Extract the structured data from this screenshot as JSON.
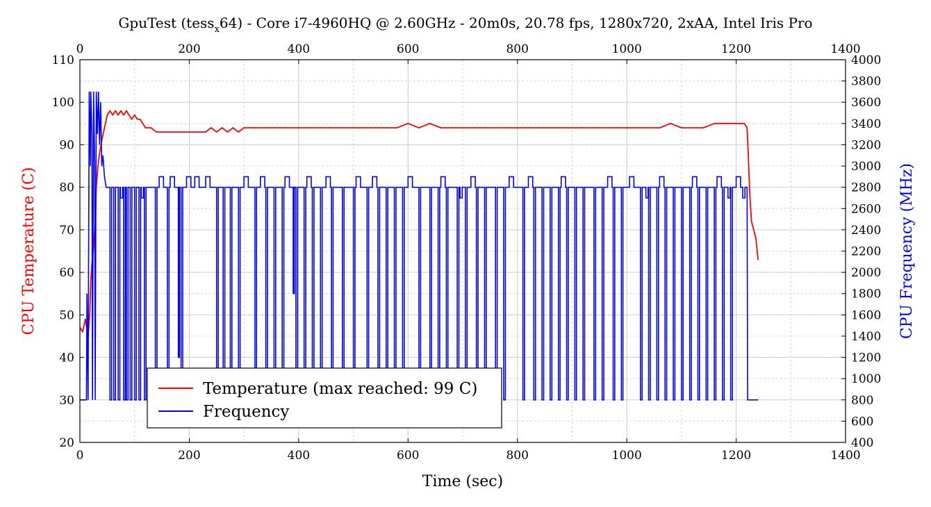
{
  "chart_data": {
    "type": "line",
    "title": "GpuTest (tess_x64) - Core i7-4960HQ @ 2.60GHz - 20m0s, 20.78 fps, 1280x720, 2xAA, Intel Iris Pro",
    "title_parts": {
      "before": "GpuTest (tess",
      "subscript": "x",
      "after": "64) - Core i7-4960HQ @ 2.60GHz - 20m0s, 20.78 fps, 1280x720, 2xAA, Intel Iris Pro"
    },
    "xlabel": "Time (sec)",
    "ylabel_left": "CPU Temperature (C)",
    "ylabel_right": "CPU Frequency (MHz)",
    "xlim": [
      0,
      1400
    ],
    "ylim_left": [
      20,
      110
    ],
    "ylim_right": [
      400,
      4000
    ],
    "x_ticks": [
      0,
      200,
      400,
      600,
      800,
      1000,
      1200,
      1400
    ],
    "y_left_ticks": [
      20,
      30,
      40,
      50,
      60,
      70,
      80,
      90,
      100,
      110
    ],
    "y_right_ticks": [
      400,
      600,
      800,
      1000,
      1200,
      1400,
      1600,
      1800,
      2000,
      2200,
      2400,
      2600,
      2800,
      3000,
      3200,
      3400,
      3600,
      3800,
      4000
    ],
    "grid": true,
    "legend_position": "bottom-left",
    "colors": {
      "temperature": "#ff0000",
      "frequency": "#0000ff"
    },
    "series": [
      {
        "name": "Temperature (max reached: 99 C)",
        "axis": "left",
        "color": "#ff0000",
        "x": [
          0,
          5,
          10,
          15,
          18,
          20,
          22,
          25,
          28,
          30,
          33,
          36,
          40,
          45,
          50,
          55,
          60,
          65,
          70,
          75,
          80,
          85,
          90,
          95,
          100,
          105,
          110,
          115,
          120,
          130,
          140,
          150,
          160,
          170,
          180,
          190,
          200,
          210,
          220,
          230,
          240,
          250,
          260,
          270,
          280,
          290,
          300,
          320,
          340,
          360,
          380,
          400,
          420,
          440,
          460,
          480,
          500,
          520,
          540,
          560,
          580,
          600,
          620,
          640,
          660,
          680,
          700,
          720,
          740,
          760,
          780,
          800,
          820,
          840,
          860,
          880,
          900,
          920,
          940,
          960,
          980,
          1000,
          1020,
          1040,
          1060,
          1080,
          1100,
          1120,
          1140,
          1160,
          1180,
          1200,
          1210,
          1215,
          1220,
          1222,
          1225,
          1228,
          1232,
          1236,
          1240
        ],
        "y": [
          47,
          46,
          49,
          45,
          50,
          58,
          62,
          66,
          72,
          80,
          85,
          88,
          91,
          94,
          97,
          98,
          97,
          98,
          97,
          98,
          97,
          98,
          97,
          96,
          97,
          96,
          96,
          95,
          94,
          94,
          93,
          93,
          93,
          93,
          93,
          93,
          93,
          93,
          93,
          93,
          94,
          93,
          94,
          93,
          94,
          93,
          94,
          94,
          94,
          94,
          94,
          94,
          94,
          94,
          94,
          94,
          94,
          94,
          94,
          94,
          94,
          95,
          94,
          95,
          94,
          94,
          94,
          94,
          94,
          94,
          94,
          94,
          94,
          94,
          94,
          94,
          94,
          94,
          94,
          94,
          94,
          94,
          94,
          94,
          94,
          95,
          94,
          94,
          94,
          95,
          95,
          95,
          95,
          95,
          94,
          88,
          78,
          72,
          70,
          68,
          63
        ]
      },
      {
        "name": "Frequency",
        "axis": "right",
        "color": "#0000ff",
        "base": 2800,
        "start": [
          [
            0,
            800
          ],
          [
            12,
            800
          ],
          [
            13,
            1800
          ],
          [
            15,
            800
          ],
          [
            17,
            3700
          ],
          [
            19,
            3000
          ],
          [
            20,
            3700
          ],
          [
            22,
            3300
          ],
          [
            23,
            800
          ],
          [
            25,
            3700
          ],
          [
            27,
            3000
          ],
          [
            28,
            800
          ],
          [
            30,
            3700
          ],
          [
            32,
            3300
          ],
          [
            34,
            3700
          ],
          [
            36,
            3200
          ],
          [
            38,
            3600
          ],
          [
            40,
            3000
          ],
          [
            42,
            3100
          ],
          [
            45,
            2900
          ],
          [
            48,
            2800
          ],
          [
            50,
            2800
          ]
        ],
        "tail": [
          [
            1220,
            2800
          ],
          [
            1221,
            800
          ],
          [
            1240,
            800
          ]
        ],
        "dips": [
          55,
          62,
          70,
          80,
          85,
          92,
          100,
          108,
          118,
          138,
          150,
          160,
          170,
          185,
          200,
          215,
          235,
          250,
          262,
          275,
          290,
          305,
          320,
          340,
          355,
          370,
          380,
          395,
          410,
          425,
          440,
          460,
          480,
          500,
          510,
          525,
          545,
          560,
          575,
          590,
          605,
          620,
          640,
          655,
          670,
          690,
          705,
          725,
          740,
          760,
          775,
          790,
          810,
          830,
          845,
          860,
          875,
          890,
          905,
          920,
          940,
          955,
          975,
          990,
          1010,
          1025,
          1040,
          1055,
          1070,
          1085,
          1100,
          1115,
          1130,
          1145,
          1160,
          1175,
          1190,
          1205
        ],
        "highs": [
          145,
          165,
          195,
          210,
          230,
          265,
          300,
          330,
          375,
          415,
          450,
          505,
          535,
          600,
          660,
          715,
          785,
          820,
          880,
          965,
          1005,
          1060,
          1120,
          1165,
          1200
        ],
        "lows": [
          58,
          64,
          74,
          86,
          95,
          102,
          112,
          525,
          695,
          1035,
          1185,
          1212
        ],
        "mids": [
          [
            150,
            1800
          ],
          [
            180,
            1200
          ],
          [
            390,
            1800
          ],
          [
            505,
            1800
          ],
          [
            890,
            1800
          ]
        ]
      }
    ]
  }
}
